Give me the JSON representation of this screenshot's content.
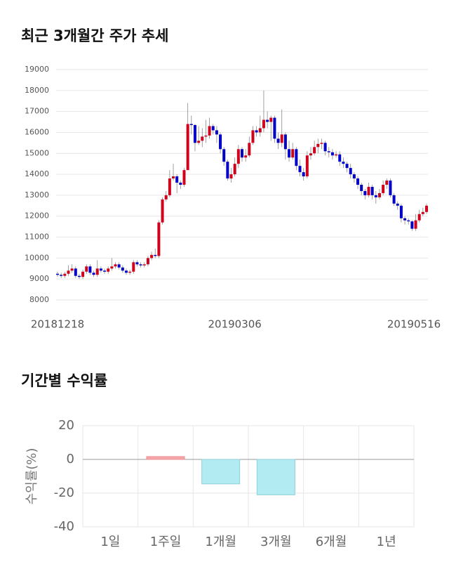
{
  "chart_data": [
    {
      "type": "candlestick",
      "title": "최근 3개월간 주가 추세",
      "categories": [
        "20181218",
        null,
        null,
        null,
        null,
        null,
        null,
        null,
        null,
        null,
        null,
        null,
        null,
        null,
        null,
        null,
        null,
        null,
        null,
        null,
        null,
        null,
        null,
        null,
        null,
        null,
        null,
        null,
        null,
        null,
        null,
        null,
        null,
        null,
        null,
        null,
        null,
        null,
        null,
        null,
        null,
        null,
        null,
        null,
        null,
        null,
        null,
        null,
        null,
        "20190306",
        null,
        null,
        null,
        null,
        null,
        null,
        null,
        null,
        null,
        null,
        null,
        null,
        null,
        null,
        null,
        null,
        null,
        null,
        null,
        null,
        null,
        null,
        null,
        null,
        null,
        null,
        null,
        null,
        null,
        null,
        null,
        null,
        null,
        null,
        null,
        null,
        null,
        null,
        null,
        null,
        null,
        null,
        null,
        null,
        null,
        null,
        null,
        null,
        null,
        "20190516",
        null,
        null,
        null
      ],
      "open": [
        9250,
        9200,
        9150,
        9250,
        9400,
        9500,
        9150,
        9100,
        9350,
        9600,
        9300,
        9200,
        9500,
        9400,
        9350,
        9500,
        9600,
        9700,
        9550,
        9400,
        9300,
        9350,
        9800,
        9700,
        9650,
        9700,
        10000,
        10150,
        10100,
        11700,
        12800,
        13000,
        13800,
        13900,
        13600,
        13500,
        14200,
        16400,
        16350,
        15500,
        15600,
        15800,
        15850,
        16300,
        16100,
        15900,
        15200,
        14600,
        13800,
        14000,
        14500,
        15200,
        14800,
        14900,
        15500,
        16100,
        16000,
        16200,
        16600,
        16500,
        16700,
        15700,
        15500,
        15900,
        15200,
        14800,
        15200,
        14400,
        14100,
        13900,
        14900,
        15000,
        15300,
        15450,
        15500,
        15100,
        15050,
        14900,
        14950,
        14600,
        14500,
        14300,
        14000,
        13800,
        13500,
        13200,
        13000,
        13400,
        13000,
        12900,
        13100,
        13500,
        13700,
        13000,
        12600,
        12500,
        11900,
        11800,
        11750,
        11400,
        11800,
        12100,
        12200
      ],
      "high": [
        9350,
        9300,
        9350,
        9650,
        9700,
        9600,
        9250,
        9450,
        9700,
        9700,
        9400,
        9900,
        9600,
        9500,
        9600,
        10000,
        9800,
        9800,
        9650,
        9500,
        9450,
        9900,
        9900,
        9800,
        9800,
        10100,
        10300,
        10450,
        11800,
        12900,
        13200,
        14200,
        14500,
        14000,
        13700,
        14300,
        17400,
        16800,
        16400,
        16300,
        16200,
        16600,
        16700,
        16400,
        16300,
        16000,
        15300,
        14700,
        14300,
        14800,
        15400,
        15300,
        15200,
        15800,
        16300,
        16300,
        16800,
        18000,
        17000,
        16800,
        16800,
        16000,
        17100,
        16000,
        15600,
        15500,
        15300,
        14700,
        14300,
        15100,
        15300,
        15600,
        15700,
        15700,
        15600,
        15300,
        15200,
        15100,
        15100,
        14800,
        14600,
        14500,
        14100,
        13900,
        13600,
        13300,
        13600,
        13500,
        13200,
        13300,
        13700,
        13800,
        13800,
        13100,
        12700,
        12600,
        12000,
        11900,
        11800,
        12100,
        12300,
        12400,
        12600
      ],
      "low": [
        9100,
        9050,
        9050,
        9150,
        9300,
        9050,
        9000,
        9000,
        9250,
        9200,
        9100,
        9100,
        9300,
        9250,
        9250,
        9400,
        9500,
        9450,
        9300,
        9200,
        9200,
        9250,
        9600,
        9550,
        9550,
        9600,
        9900,
        10000,
        10000,
        11600,
        12700,
        12900,
        13700,
        13100,
        13300,
        13400,
        14200,
        15900,
        15100,
        15400,
        15300,
        15500,
        15700,
        15900,
        15500,
        15000,
        14400,
        13700,
        13600,
        13900,
        14300,
        14600,
        14600,
        14800,
        15400,
        15800,
        15800,
        16000,
        16200,
        15600,
        15500,
        15200,
        15300,
        14700,
        14600,
        14700,
        14200,
        13900,
        13700,
        13800,
        14700,
        14900,
        15000,
        15200,
        14900,
        14800,
        14700,
        14800,
        14400,
        14300,
        14100,
        13800,
        13600,
        13300,
        13000,
        12800,
        12900,
        12800,
        12600,
        12800,
        13000,
        13300,
        12900,
        12500,
        12300,
        11700,
        11600,
        11600,
        11300,
        11300,
        11700,
        12000,
        12100
      ],
      "close": [
        9200,
        9150,
        9250,
        9400,
        9500,
        9150,
        9100,
        9350,
        9600,
        9300,
        9200,
        9500,
        9400,
        9350,
        9500,
        9600,
        9700,
        9550,
        9400,
        9300,
        9350,
        9800,
        9700,
        9650,
        9700,
        10000,
        10150,
        10100,
        11700,
        12800,
        13000,
        13800,
        13900,
        13600,
        13500,
        14200,
        16400,
        16350,
        15500,
        15600,
        15800,
        15850,
        16300,
        16100,
        15900,
        15200,
        14600,
        13800,
        14000,
        14500,
        15200,
        14800,
        14900,
        15500,
        16100,
        16000,
        16200,
        16600,
        16500,
        16700,
        15700,
        15500,
        15900,
        15200,
        14800,
        15200,
        14400,
        14100,
        13900,
        14900,
        15000,
        15300,
        15450,
        15500,
        15100,
        15050,
        14900,
        14950,
        14600,
        14500,
        14300,
        14000,
        13800,
        13500,
        13200,
        13000,
        13400,
        13000,
        12900,
        13100,
        13500,
        13700,
        13000,
        12600,
        12500,
        11900,
        11800,
        11750,
        11400,
        11800,
        12100,
        12200,
        12500
      ],
      "up_color": "#d0021b",
      "down_color": "#0000c8",
      "ylim": [
        8000,
        19000
      ],
      "yticks": [
        8000,
        9000,
        10000,
        11000,
        12000,
        13000,
        14000,
        15000,
        16000,
        17000,
        18000,
        19000
      ],
      "grid": true
    },
    {
      "type": "bar",
      "title": "기간별 수익률",
      "ylabel": "수익률(%)",
      "categories": [
        "1일",
        "1주일",
        "1개월",
        "3개월",
        "6개월",
        "1년"
      ],
      "values": [
        null,
        1.7,
        -14.5,
        -21,
        null,
        null
      ],
      "pos_color": "#f4a7a9",
      "neg_color": "#b3ebf2",
      "ylim": [
        -40,
        20
      ],
      "yticks": [
        -40,
        -20,
        0,
        20
      ],
      "grid": true
    }
  ]
}
